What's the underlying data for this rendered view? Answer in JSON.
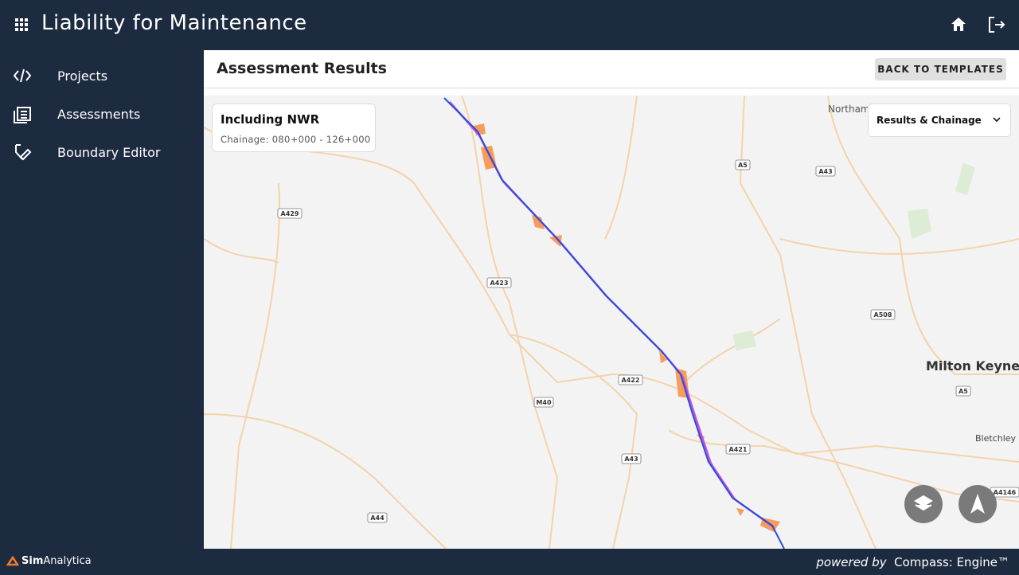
{
  "header": {
    "title": "Liability for Maintenance"
  },
  "nav": {
    "items": [
      "Projects",
      "Assessments",
      "Boundary Editor"
    ]
  },
  "page": {
    "title": "Assessment Results",
    "back_button": "BACK TO TEMPLATES"
  },
  "card": {
    "title": "Including NWR",
    "subtitle": "Chainage: 080+000 - 126+000"
  },
  "layer_select": {
    "value": "Results & Chainage"
  },
  "map": {
    "places": [
      "Northampton",
      "Milton Keynes",
      "Bletchley"
    ],
    "roads": [
      "A5",
      "A43",
      "A429",
      "A423",
      "A508",
      "A5",
      "A422",
      "M40",
      "A421",
      "A43",
      "A44",
      "A4146"
    ]
  },
  "footer": {
    "brand_bold": "Sim",
    "brand_regular": "Analytica",
    "powered_by": "powered by",
    "engine": "Compass: Engine™"
  }
}
